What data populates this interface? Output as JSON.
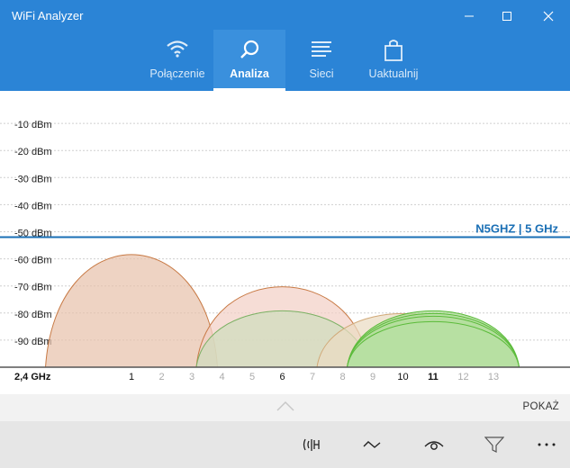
{
  "window": {
    "title": "WiFi Analyzer"
  },
  "tabs": [
    {
      "label": "Połączenie",
      "icon": "wifi-icon"
    },
    {
      "label": "Analiza",
      "icon": "magnifier-icon"
    },
    {
      "label": "Sieci",
      "icon": "list-icon"
    },
    {
      "label": "Uaktualnij",
      "icon": "shopping-bag-icon"
    }
  ],
  "active_tab": "Analiza",
  "chart_data": {
    "type": "area",
    "y_tick_labels": [
      "-10 dBm",
      "-20 dBm",
      "-30 dBm",
      "-40 dBm",
      "-50 dBm",
      "-60 dBm",
      "-70 dBm",
      "-80 dBm",
      "-90 dBm"
    ],
    "y_ticks": [
      -10,
      -20,
      -30,
      -40,
      -50,
      -60,
      -70,
      -80,
      -90
    ],
    "ylim": [
      -100,
      0
    ],
    "band_label": "2,4 GHz",
    "x_ticks": [
      "1",
      "2",
      "3",
      "4",
      "5",
      "6",
      "7",
      "8",
      "9",
      "10",
      "11",
      "12",
      "13"
    ],
    "x_ticks_emphasized": [
      "1",
      "6",
      "10",
      "11"
    ],
    "xlim": [
      -1.5,
      15
    ],
    "highlight_line": {
      "label": "N5GHZ | 5 GHz",
      "dbm": -52
    },
    "networks": [
      {
        "channel": 1,
        "dbm": -58,
        "fill": "#e8c2ac",
        "stroke": "#c87a45"
      },
      {
        "channel": 6,
        "dbm": -70,
        "fill": "#f2d0c6",
        "stroke": "#c87a45"
      },
      {
        "channel": 6,
        "dbm": -79,
        "fill": "#cfdcbc",
        "stroke": "#7ab062"
      },
      {
        "channel": 10,
        "dbm": -80,
        "fill": "#eadbc2",
        "stroke": "#d0a877"
      },
      {
        "channel": 11,
        "dbm": -79,
        "fill": "#a8da90",
        "stroke": "#5bbb3a"
      },
      {
        "channel": 11,
        "dbm": -80,
        "fill": "#b4de9e",
        "stroke": "#5bbb3a"
      },
      {
        "channel": 11,
        "dbm": -81,
        "fill": "#b4de9e",
        "stroke": "#5bbb3a"
      },
      {
        "channel": 11,
        "dbm": -83,
        "fill": "#b8e0a4",
        "stroke": "#5bbb3a"
      }
    ],
    "grid": true
  },
  "expand": {
    "show_label": "POKAŻ"
  },
  "command_bar": {
    "buttons": [
      "antenna-signal-icon",
      "wave-icon",
      "eye-icon",
      "filter-icon",
      "more-icon"
    ]
  },
  "colors": {
    "header": "#2b84d6",
    "highlight_line": "#1a6fb5"
  }
}
